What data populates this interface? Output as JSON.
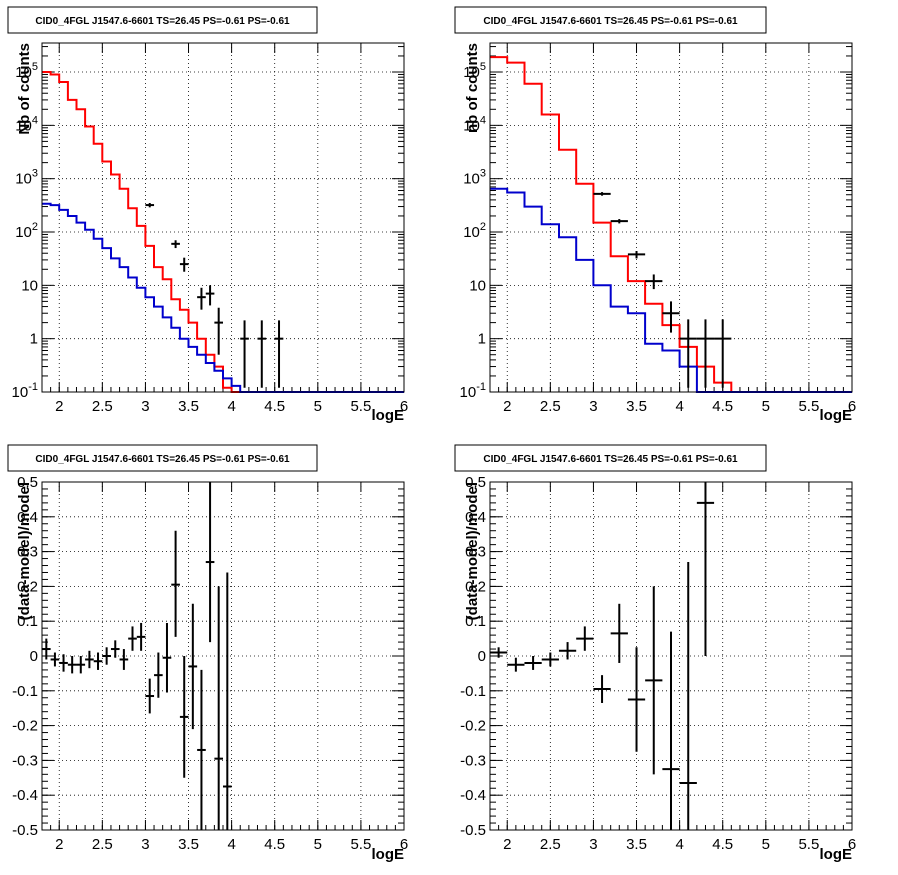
{
  "chart_data": [
    {
      "type": "histogram",
      "title": "CID0_4FGL J1547.6-6601 TS=26.45 PS=-0.61 PS=-0.61",
      "xlabel": "logE",
      "ylabel": "Nb of counts",
      "yscale": "log",
      "xlim": [
        1.8,
        6.0
      ],
      "ylim": [
        0.1,
        350000
      ],
      "grid": true,
      "x_ticks": [
        "2",
        "2.5",
        "3",
        "3.5",
        "4",
        "4.5",
        "5",
        "5.5",
        "6"
      ],
      "y_ticks": [
        "10^-1",
        "1",
        "10",
        "10^2",
        "10^3",
        "10^4",
        "10^5"
      ],
      "bin_edges": [
        1.8,
        1.9,
        2.0,
        2.1,
        2.2,
        2.3,
        2.4,
        2.5,
        2.6,
        2.7,
        2.8,
        2.9,
        3.0,
        3.1,
        3.2,
        3.3,
        3.4,
        3.5,
        3.6,
        3.7,
        3.8,
        3.9,
        4.0,
        4.1,
        4.2,
        4.3,
        4.4,
        4.5,
        4.6,
        4.7,
        4.8,
        4.9,
        5.0,
        5.1,
        5.2,
        5.3,
        5.4,
        5.5,
        5.6,
        5.7,
        5.8,
        5.9,
        6.0
      ],
      "series": [
        {
          "color": "#ff0000",
          "style": "step",
          "values": [
            100000,
            90000,
            65000,
            30000,
            20000,
            9500,
            4500,
            2100,
            1200,
            650,
            280,
            130,
            55,
            22,
            13,
            5.5,
            3.5,
            2.0,
            1.0,
            0.5,
            0.3,
            0.12,
            0.1,
            0.1,
            0.1,
            0.1,
            0.1,
            0.1,
            0.1,
            0.1,
            0.1,
            0.1,
            0.1,
            0.1,
            0.1,
            0.1,
            0.1,
            0.1,
            0.1,
            0.1,
            0.1,
            0.1
          ]
        },
        {
          "color": "#0000cc",
          "style": "step",
          "values": [
            340,
            320,
            260,
            200,
            150,
            110,
            75,
            50,
            32,
            22,
            14,
            9,
            6,
            4,
            2.5,
            1.6,
            1.0,
            0.7,
            0.5,
            0.35,
            0.25,
            0.18,
            0.13,
            0.1,
            0.1,
            0.1,
            0.1,
            0.1,
            0.1,
            0.1,
            0.1,
            0.1,
            0.1,
            0.1,
            0.1,
            0.1,
            0.1,
            0.1,
            0.1,
            0.1,
            0.1,
            0.1
          ]
        }
      ],
      "points": [
        {
          "x": 3.05,
          "y": 320,
          "ylo": 290,
          "yhi": 350
        },
        {
          "x": 3.35,
          "y": 60,
          "ylo": 50,
          "yhi": 70
        },
        {
          "x": 3.45,
          "y": 25,
          "ylo": 18,
          "yhi": 33
        },
        {
          "x": 3.65,
          "y": 6,
          "ylo": 3.5,
          "yhi": 9
        },
        {
          "x": 3.75,
          "y": 7,
          "ylo": 4.2,
          "yhi": 10
        },
        {
          "x": 3.85,
          "y": 2,
          "ylo": 0.5,
          "yhi": 3.8
        },
        {
          "x": 4.15,
          "y": 1,
          "ylo": 0.12,
          "yhi": 2.2
        },
        {
          "x": 4.35,
          "y": 1,
          "ylo": 0.12,
          "yhi": 2.2
        },
        {
          "x": 4.55,
          "y": 1,
          "ylo": 0.12,
          "yhi": 2.2
        }
      ]
    },
    {
      "type": "histogram",
      "title": "CID0_4FGL J1547.6-6601 TS=26.45 PS=-0.61 PS=-0.61",
      "xlabel": "logE",
      "ylabel": "nb of counts",
      "yscale": "log",
      "xlim": [
        1.8,
        6.0
      ],
      "ylim": [
        0.1,
        350000
      ],
      "grid": true,
      "x_ticks": [
        "2",
        "2.5",
        "3",
        "3.5",
        "4",
        "4.5",
        "5",
        "5.5",
        "6"
      ],
      "y_ticks": [
        "10^-1",
        "1",
        "10",
        "10^2",
        "10^3",
        "10^4",
        "10^5"
      ],
      "bin_edges": [
        1.8,
        2.0,
        2.2,
        2.4,
        2.6,
        2.8,
        3.0,
        3.2,
        3.4,
        3.6,
        3.8,
        4.0,
        4.2,
        4.4,
        4.6,
        4.8,
        5.0,
        5.2,
        5.4,
        5.6,
        5.8,
        6.0
      ],
      "series": [
        {
          "color": "#ff0000",
          "style": "step",
          "values": [
            190000,
            150000,
            60000,
            16000,
            3500,
            800,
            150,
            35,
            12,
            4.5,
            1.8,
            0.7,
            0.3,
            0.15,
            0.1,
            0.1,
            0.1,
            0.1,
            0.1,
            0.1,
            0.1
          ]
        },
        {
          "color": "#0000cc",
          "style": "step",
          "values": [
            650,
            550,
            300,
            140,
            80,
            30,
            10,
            4,
            3,
            0.8,
            0.6,
            0.3,
            0.1,
            0.1,
            0.1,
            0.1,
            0.1,
            0.1,
            0.1,
            0.1,
            0.1
          ]
        }
      ],
      "points": [
        {
          "x": 3.1,
          "y": 520,
          "ylo": 480,
          "yhi": 560
        },
        {
          "x": 3.3,
          "y": 160,
          "ylo": 145,
          "yhi": 175
        },
        {
          "x": 3.5,
          "y": 38,
          "ylo": 32,
          "yhi": 44
        },
        {
          "x": 3.7,
          "y": 12,
          "ylo": 8.5,
          "yhi": 16
        },
        {
          "x": 3.9,
          "y": 3,
          "ylo": 1.3,
          "yhi": 5
        },
        {
          "x": 4.1,
          "y": 1,
          "ylo": 0.12,
          "yhi": 2.3
        },
        {
          "x": 4.3,
          "y": 1,
          "ylo": 0.12,
          "yhi": 2.3
        },
        {
          "x": 4.5,
          "y": 1,
          "ylo": 0.12,
          "yhi": 2.3
        }
      ]
    },
    {
      "type": "scatter",
      "title": "CID0_4FGL J1547.6-6601 TS=26.45 PS=-0.61 PS=-0.61",
      "xlabel": "logE",
      "ylabel": "(data-model)/model",
      "yscale": "linear",
      "xlim": [
        1.8,
        6.0
      ],
      "ylim": [
        -0.5,
        0.5
      ],
      "grid": true,
      "x_ticks": [
        "2",
        "2.5",
        "3",
        "3.5",
        "4",
        "4.5",
        "5",
        "5.5",
        "6"
      ],
      "y_ticks": [
        "-0.5",
        "-0.4",
        "-0.3",
        "-0.2",
        "-0.1",
        "0",
        "0.1",
        "0.2",
        "0.3",
        "0.4",
        "0.5"
      ],
      "x_halfwidth": 0.05,
      "points": [
        {
          "x": 1.85,
          "y": 0.02,
          "ylo": -0.01,
          "yhi": 0.05
        },
        {
          "x": 1.95,
          "y": -0.01,
          "ylo": -0.03,
          "yhi": 0.01
        },
        {
          "x": 2.05,
          "y": -0.02,
          "ylo": -0.045,
          "yhi": 0.005
        },
        {
          "x": 2.15,
          "y": -0.025,
          "ylo": -0.05,
          "yhi": 0.0
        },
        {
          "x": 2.25,
          "y": -0.025,
          "ylo": -0.05,
          "yhi": 0.0
        },
        {
          "x": 2.35,
          "y": -0.01,
          "ylo": -0.035,
          "yhi": 0.015
        },
        {
          "x": 2.45,
          "y": -0.015,
          "ylo": -0.04,
          "yhi": 0.01
        },
        {
          "x": 2.55,
          "y": 0.0,
          "ylo": -0.025,
          "yhi": 0.025
        },
        {
          "x": 2.65,
          "y": 0.02,
          "ylo": -0.005,
          "yhi": 0.045
        },
        {
          "x": 2.75,
          "y": -0.01,
          "ylo": -0.04,
          "yhi": 0.02
        },
        {
          "x": 2.85,
          "y": 0.05,
          "ylo": 0.015,
          "yhi": 0.085
        },
        {
          "x": 2.95,
          "y": 0.055,
          "ylo": 0.015,
          "yhi": 0.095
        },
        {
          "x": 3.05,
          "y": -0.115,
          "ylo": -0.165,
          "yhi": -0.065
        },
        {
          "x": 3.15,
          "y": -0.055,
          "ylo": -0.12,
          "yhi": 0.01
        },
        {
          "x": 3.25,
          "y": -0.005,
          "ylo": -0.105,
          "yhi": 0.095
        },
        {
          "x": 3.35,
          "y": 0.205,
          "ylo": 0.055,
          "yhi": 0.36
        },
        {
          "x": 3.45,
          "y": -0.175,
          "ylo": -0.35,
          "yhi": 0.0
        },
        {
          "x": 3.55,
          "y": -0.03,
          "ylo": -0.21,
          "yhi": 0.15
        },
        {
          "x": 3.65,
          "y": -0.27,
          "ylo": -0.5,
          "yhi": -0.04
        },
        {
          "x": 3.75,
          "y": 0.27,
          "ylo": 0.04,
          "yhi": 0.5
        },
        {
          "x": 3.85,
          "y": -0.295,
          "ylo": -0.5,
          "yhi": 0.2
        },
        {
          "x": 3.95,
          "y": -0.375,
          "ylo": -0.5,
          "yhi": 0.24
        }
      ]
    },
    {
      "type": "scatter",
      "title": "CID0_4FGL J1547.6-6601 TS=26.45 PS=-0.61 PS=-0.61",
      "xlabel": "logE",
      "ylabel": "(data-model)/model",
      "yscale": "linear",
      "xlim": [
        1.8,
        6.0
      ],
      "ylim": [
        -0.5,
        0.5
      ],
      "grid": true,
      "x_ticks": [
        "2",
        "2.5",
        "3",
        "3.5",
        "4",
        "4.5",
        "5",
        "5.5",
        "6"
      ],
      "y_ticks": [
        "-0.5",
        "-0.4",
        "-0.3",
        "-0.2",
        "-0.1",
        "0",
        "0.1",
        "0.2",
        "0.3",
        "0.4",
        "0.5"
      ],
      "x_halfwidth": 0.1,
      "points": [
        {
          "x": 1.9,
          "y": 0.01,
          "ylo": -0.005,
          "yhi": 0.025
        },
        {
          "x": 2.1,
          "y": -0.025,
          "ylo": -0.045,
          "yhi": -0.005
        },
        {
          "x": 2.3,
          "y": -0.02,
          "ylo": -0.04,
          "yhi": 0.0
        },
        {
          "x": 2.5,
          "y": -0.01,
          "ylo": -0.03,
          "yhi": 0.01
        },
        {
          "x": 2.7,
          "y": 0.015,
          "ylo": -0.01,
          "yhi": 0.04
        },
        {
          "x": 2.9,
          "y": 0.05,
          "ylo": 0.015,
          "yhi": 0.085
        },
        {
          "x": 3.1,
          "y": -0.095,
          "ylo": -0.135,
          "yhi": -0.055
        },
        {
          "x": 3.3,
          "y": 0.065,
          "ylo": -0.02,
          "yhi": 0.15
        },
        {
          "x": 3.5,
          "y": -0.125,
          "ylo": -0.275,
          "yhi": 0.025
        },
        {
          "x": 3.7,
          "y": -0.07,
          "ylo": -0.34,
          "yhi": 0.2
        },
        {
          "x": 3.9,
          "y": -0.325,
          "ylo": -0.5,
          "yhi": 0.07
        },
        {
          "x": 4.1,
          "y": -0.365,
          "ylo": -0.5,
          "yhi": 0.27
        },
        {
          "x": 4.3,
          "y": 0.44,
          "ylo": 0.0,
          "yhi": 0.5
        }
      ]
    }
  ]
}
